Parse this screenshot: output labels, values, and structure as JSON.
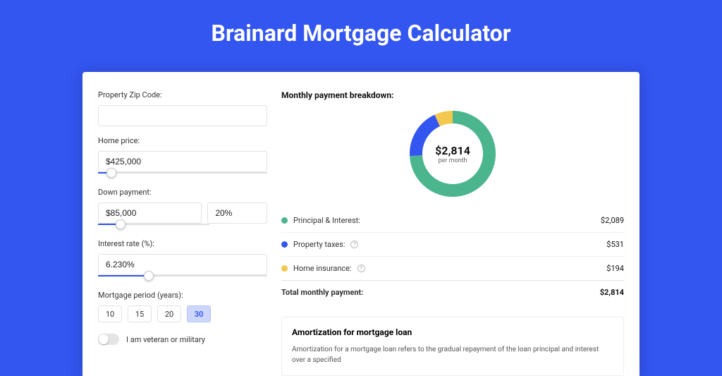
{
  "page": {
    "title": "Brainard Mortgage Calculator",
    "background_color": "#3355f0"
  },
  "form": {
    "zip": {
      "label": "Property Zip Code:",
      "value": ""
    },
    "home_price": {
      "label": "Home price:",
      "value": "$425,000",
      "slider_pct": 8
    },
    "down_payment": {
      "label": "Down payment:",
      "value": "$85,000",
      "pct_value": "20%",
      "slider_pct": 20
    },
    "interest_rate": {
      "label": "Interest rate (%):",
      "value": "6.230%",
      "slider_pct": 30
    },
    "period": {
      "label": "Mortgage period (years):",
      "options": [
        "10",
        "15",
        "20",
        "30"
      ],
      "selected_index": 3
    },
    "veteran": {
      "label": "I am veteran or military",
      "value": false
    }
  },
  "results": {
    "breakdown_label": "Monthly payment breakdown:",
    "total_amount": "$2,814",
    "total_sub": "per month",
    "donut": {
      "segments": [
        {
          "name": "Principal & Interest",
          "value": 2089,
          "color": "#4bb58e",
          "pct": 74.2
        },
        {
          "name": "Property taxes",
          "value": 531,
          "color": "#3355f0",
          "pct": 18.9
        },
        {
          "name": "Home insurance",
          "value": 194,
          "color": "#f3c84e",
          "pct": 6.9
        }
      ],
      "thickness": 18,
      "radius": 62
    },
    "rows": [
      {
        "label": "Principal & Interest:",
        "color": "#4bb58e",
        "info": false,
        "value": "$2,089"
      },
      {
        "label": "Property taxes:",
        "color": "#3355f0",
        "info": true,
        "value": "$531"
      },
      {
        "label": "Home insurance:",
        "color": "#f3c84e",
        "info": true,
        "value": "$194"
      }
    ],
    "total_row": {
      "label": "Total monthly payment:",
      "value": "$2,814"
    }
  },
  "amortization": {
    "title": "Amortization for mortgage loan",
    "body": "Amortization for a mortgage loan refers to the gradual repayment of the loan principal and interest over a specified"
  }
}
